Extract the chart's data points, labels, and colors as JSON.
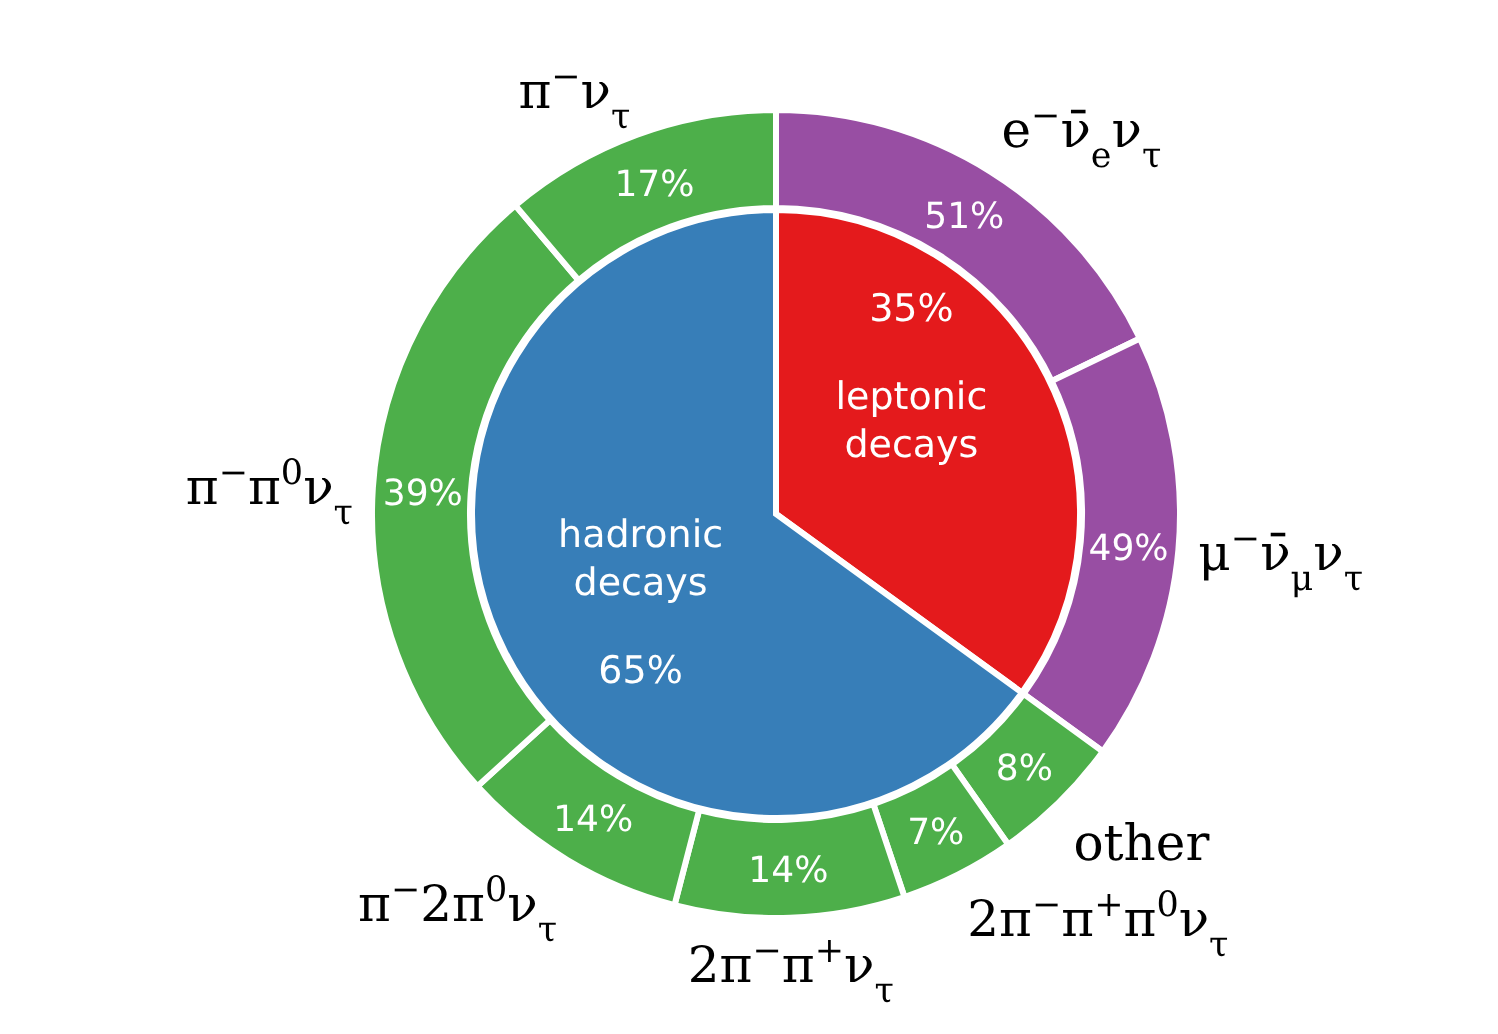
{
  "chart_data": [
    {
      "type": "pie",
      "categories": [
        "leptonic decays",
        "hadronic decays"
      ],
      "values": [
        35,
        65
      ],
      "value_labels": [
        "35%",
        "65%"
      ],
      "colors": [
        "#e41a1c",
        "#377eb8"
      ]
    },
    {
      "type": "other",
      "categories": [
        "e$^{−}$ν̄$_{e}$ν$_{τ}$",
        "μ$^{−}$ν̄$_{μ}$ν$_{τ}$",
        "other",
        "2π$^{−}$π$^{+}$π$^{0}$ν$_{τ}$",
        "2π$^{−}$π$^{+}$ν$_{τ}$",
        "π$^{−}$2π$^{0}$ν$_{τ}$",
        "π$^{−}$π$^{0}$ν$_{τ}$",
        "π$^{−}$ν$_{τ}$"
      ],
      "values": [
        51,
        49,
        8,
        7,
        14,
        14,
        39,
        17
      ],
      "value_labels": [
        "51%",
        "49%",
        "8%",
        "7%",
        "14%",
        "14%",
        "39%",
        "17%"
      ],
      "colors": [
        "#984ea3",
        "#984ea3",
        "#4daf4a",
        "#4daf4a",
        "#4daf4a",
        "#4daf4a",
        "#4daf4a",
        "#4daf4a"
      ]
    }
  ]
}
